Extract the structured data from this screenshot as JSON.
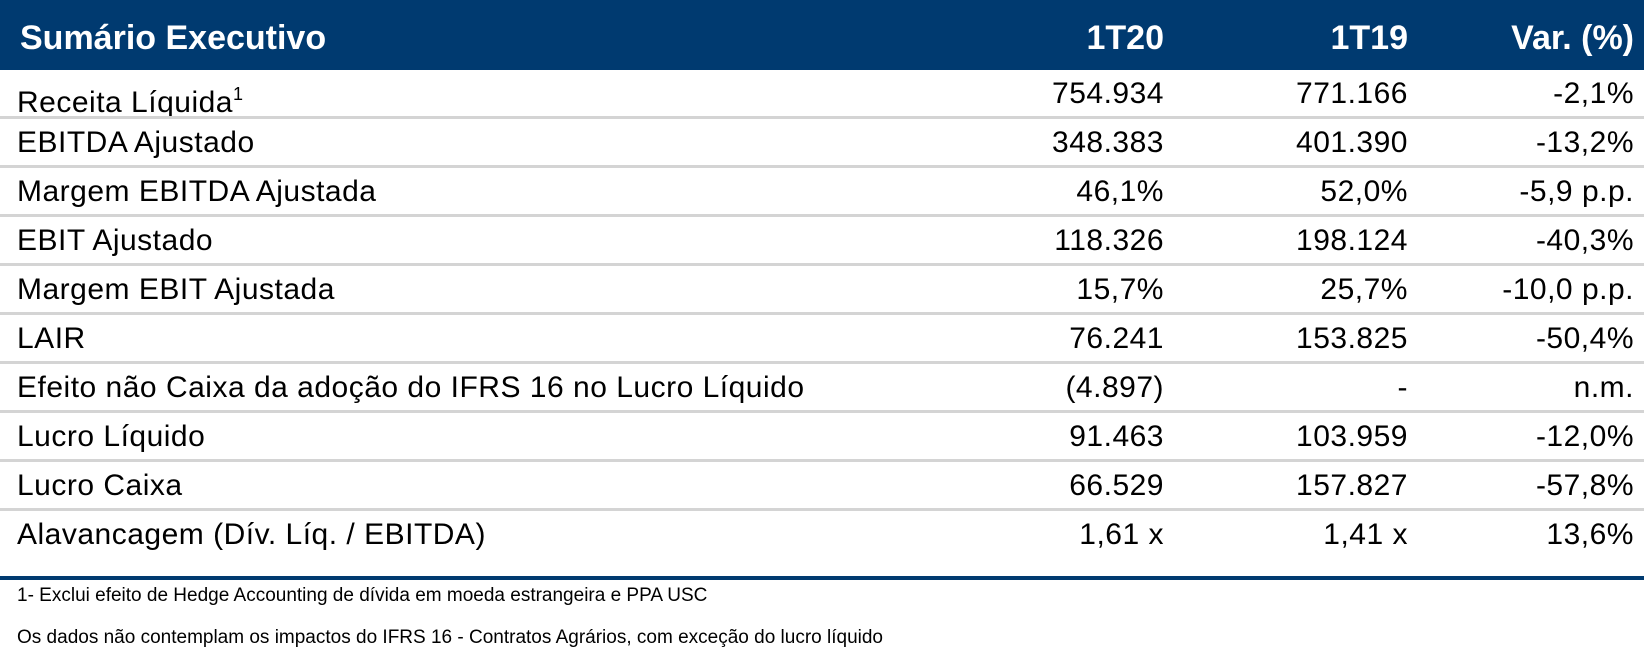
{
  "header": {
    "title": "Sumário Executivo",
    "col1": "1T20",
    "col2": "1T19",
    "col3": "Var. (%)"
  },
  "rows": [
    {
      "label": "Receita Líquida",
      "footnote": "1",
      "v1": "754.934",
      "v2": "771.166",
      "v3": "-2,1%"
    },
    {
      "label": "EBITDA Ajustado",
      "v1": "348.383",
      "v2": "401.390",
      "v3": "-13,2%"
    },
    {
      "label": "Margem EBITDA Ajustada",
      "v1": "46,1%",
      "v2": "52,0%",
      "v3": "-5,9 p.p."
    },
    {
      "label": "EBIT Ajustado",
      "v1": "118.326",
      "v2": "198.124",
      "v3": "-40,3%"
    },
    {
      "label": "Margem EBIT Ajustada",
      "v1": "15,7%",
      "v2": "25,7%",
      "v3": "-10,0 p.p."
    },
    {
      "label": "LAIR",
      "v1": "76.241",
      "v2": "153.825",
      "v3": "-50,4%"
    },
    {
      "label": "Efeito não Caixa da adoção do IFRS 16 no Lucro Líquido",
      "v1": "(4.897)",
      "v2": "-",
      "v3": "n.m."
    },
    {
      "label": "Lucro Líquido",
      "v1": "91.463",
      "v2": "103.959",
      "v3": "-12,0%"
    },
    {
      "label": "Lucro Caixa",
      "v1": "66.529",
      "v2": "157.827",
      "v3": "-57,8%"
    },
    {
      "label": "Alavancagem (Dív. Líq. / EBITDA)",
      "v1": "1,61 x",
      "v2": "1,41 x",
      "v3": "13,6%"
    }
  ],
  "notes": [
    "1- Exclui efeito de Hedge Accounting de dívida em moeda estrangeira e PPA USC",
    "Os dados não contemplam os impactos do IFRS 16 - Contratos Agrários, com exceção do lucro líquido"
  ],
  "colors": {
    "header_bg": "#003a70",
    "header_text": "#ffffff",
    "separator": "#d4d4d4"
  }
}
